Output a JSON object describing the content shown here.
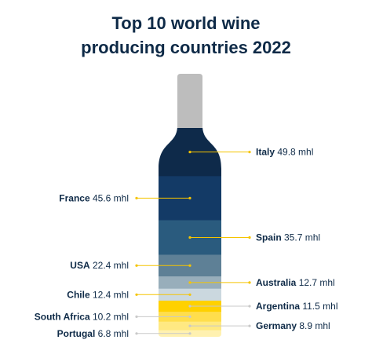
{
  "chart_data": {
    "type": "bar",
    "title_lines": [
      "Top 10 world wine",
      "producing countries 2022"
    ],
    "unit": "mhl",
    "categories": [
      "Italy",
      "France",
      "Spain",
      "USA",
      "Australia",
      "Chile",
      "Argentina",
      "South Africa",
      "Germany",
      "Portugal"
    ],
    "values": [
      49.8,
      45.6,
      35.7,
      22.4,
      12.7,
      12.4,
      11.5,
      10.2,
      8.9,
      6.8
    ],
    "value_labels": [
      "49.8 mhl",
      "45.6 mhl",
      "35.7 mhl",
      "22.4 mhl",
      "12.7 mhl",
      "12.4 mhl",
      "11.5 mhl",
      "10.2 mhl",
      "8.9 mhl",
      "6.8 mhl"
    ],
    "label_side": [
      "right",
      "left",
      "right",
      "left",
      "right",
      "left",
      "right",
      "left",
      "right",
      "left"
    ],
    "band_colors": [
      "#0e2a4a",
      "#133a66",
      "#2a5b7e",
      "#5e8096",
      "#98aebb",
      "#cbd8df",
      "#ffd100",
      "#ffde4d",
      "#ffe982",
      "#fff1b0"
    ],
    "line_colors": [
      "#f5c400",
      "#f5c400",
      "#f5c400",
      "#f5c400",
      "#f5c400",
      "#f5c400",
      "#c9c9c9",
      "#c9c9c9",
      "#c9c9c9",
      "#c9c9c9"
    ]
  },
  "colors": {
    "title": "#0e2a47",
    "bottle_neck": "#bdbdbd",
    "label_text": "#0e2a47"
  }
}
